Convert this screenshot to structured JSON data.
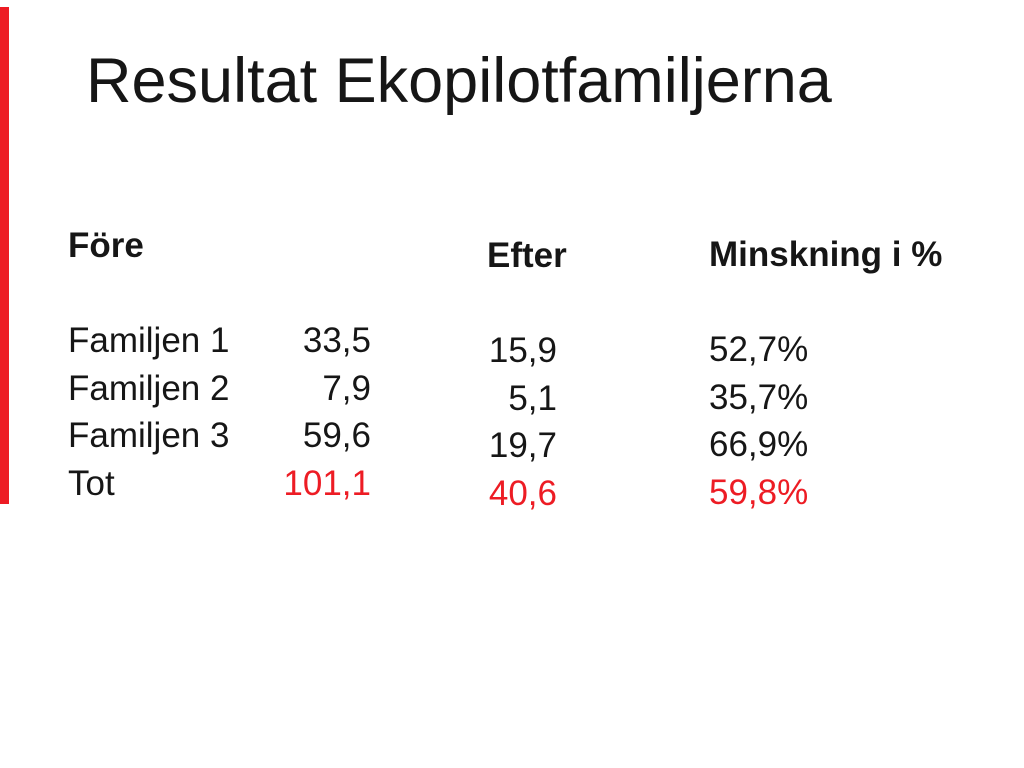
{
  "slide": {
    "title": "Resultat Ekopilotfamiljerna",
    "background": "#ffffff",
    "text_color": "#161616",
    "accent_color": "#ed1c24",
    "columns": {
      "fore": {
        "header": "Före",
        "rows": [
          {
            "label": "Familjen 1",
            "value": "33,5",
            "highlight": false
          },
          {
            "label": "Familjen 2",
            "value": "7,9",
            "highlight": false
          },
          {
            "label": "Familjen 3",
            "value": "59,6",
            "highlight": false
          },
          {
            "label": "Tot",
            "value": "101,1",
            "highlight": true
          }
        ]
      },
      "efter": {
        "header": "Efter",
        "rows": [
          {
            "value": "15,9",
            "highlight": false
          },
          {
            "value": "5,1",
            "highlight": false
          },
          {
            "value": "19,7",
            "highlight": false
          },
          {
            "value": "40,6",
            "highlight": true
          }
        ]
      },
      "minskning": {
        "header": "Minskning i %",
        "rows": [
          {
            "value": "52,7%",
            "highlight": false
          },
          {
            "value": "35,7%",
            "highlight": false
          },
          {
            "value": "66,9%",
            "highlight": false
          },
          {
            "value": "59,8%",
            "highlight": true
          }
        ]
      }
    }
  }
}
